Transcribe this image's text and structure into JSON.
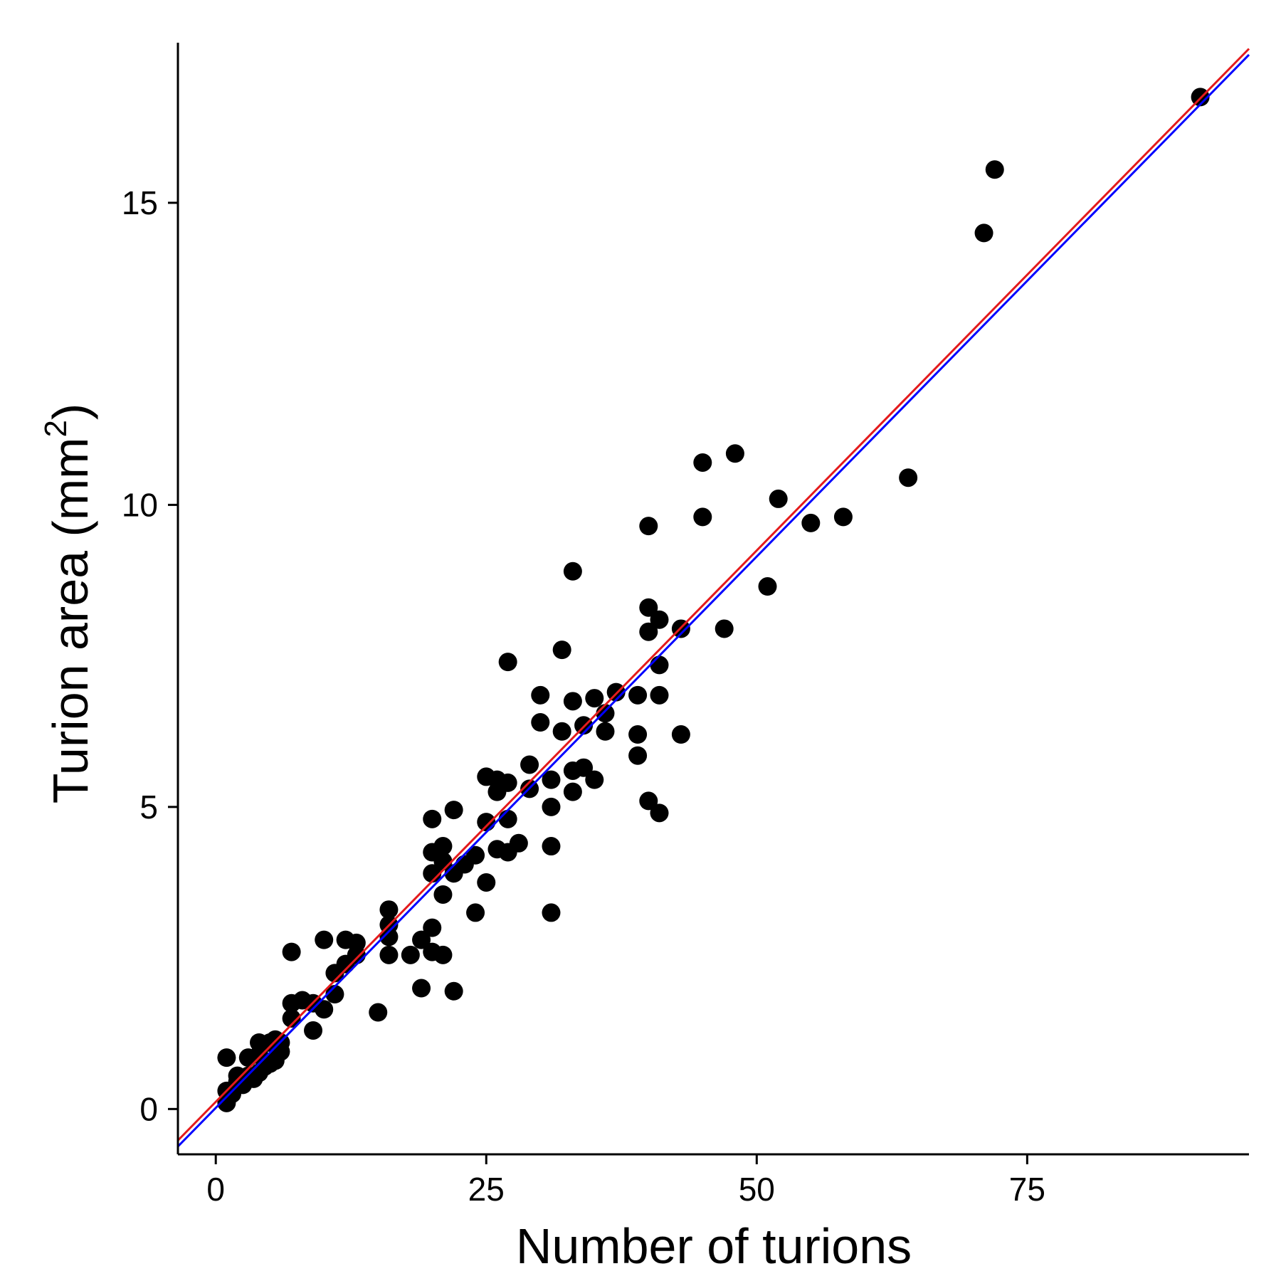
{
  "chart_data": {
    "type": "scatter",
    "xlabel": "Number of turions",
    "ylabel": {
      "text": "Turion area (mm",
      "superscript": "2",
      "suffix": ")"
    },
    "xlim": [
      -3.5,
      95.5
    ],
    "ylim": [
      -0.75,
      17.65
    ],
    "xticks": [
      0,
      25,
      50,
      75
    ],
    "yticks": [
      0,
      5,
      10,
      15
    ],
    "grid": false,
    "legend": "none",
    "point_color": "#000000",
    "points": [
      [
        1,
        0.1
      ],
      [
        1,
        0.3
      ],
      [
        1,
        0.85
      ],
      [
        1.5,
        0.25
      ],
      [
        2,
        0.45
      ],
      [
        2,
        0.55
      ],
      [
        2.5,
        0.4
      ],
      [
        3,
        0.55
      ],
      [
        3,
        0.85
      ],
      [
        3.5,
        0.5
      ],
      [
        4,
        0.6
      ],
      [
        4,
        0.9
      ],
      [
        4,
        1.1
      ],
      [
        4.5,
        0.7
      ],
      [
        5,
        0.75
      ],
      [
        5,
        1.1
      ],
      [
        5.5,
        0.8
      ],
      [
        5.5,
        1.15
      ],
      [
        6,
        0.95
      ],
      [
        6,
        1.1
      ],
      [
        7,
        1.5
      ],
      [
        7,
        1.75
      ],
      [
        7,
        2.6
      ],
      [
        8,
        1.8
      ],
      [
        9,
        1.3
      ],
      [
        9,
        1.75
      ],
      [
        10,
        1.65
      ],
      [
        10,
        2.8
      ],
      [
        11,
        1.9
      ],
      [
        11,
        2.25
      ],
      [
        12,
        2.4
      ],
      [
        12,
        2.8
      ],
      [
        13,
        2.55
      ],
      [
        13,
        2.75
      ],
      [
        15,
        1.6
      ],
      [
        16,
        2.55
      ],
      [
        16,
        2.85
      ],
      [
        16,
        3.05
      ],
      [
        16,
        3.3
      ],
      [
        18,
        2.55
      ],
      [
        19,
        2.0
      ],
      [
        19,
        2.8
      ],
      [
        20,
        2.6
      ],
      [
        20,
        3.0
      ],
      [
        20,
        3.9
      ],
      [
        20,
        4.25
      ],
      [
        20,
        4.8
      ],
      [
        21,
        2.55
      ],
      [
        21,
        3.55
      ],
      [
        21,
        4.1
      ],
      [
        21,
        4.35
      ],
      [
        22,
        1.95
      ],
      [
        22,
        3.9
      ],
      [
        22,
        4.95
      ],
      [
        23,
        4.05
      ],
      [
        24,
        3.25
      ],
      [
        24,
        4.2
      ],
      [
        25,
        3.75
      ],
      [
        25,
        4.75
      ],
      [
        25,
        5.5
      ],
      [
        26,
        4.3
      ],
      [
        26,
        5.25
      ],
      [
        26,
        5.45
      ],
      [
        27,
        4.25
      ],
      [
        27,
        4.8
      ],
      [
        27,
        5.4
      ],
      [
        27,
        7.4
      ],
      [
        28,
        4.4
      ],
      [
        29,
        5.3
      ],
      [
        29,
        5.7
      ],
      [
        30,
        6.4
      ],
      [
        30,
        6.85
      ],
      [
        31,
        3.25
      ],
      [
        31,
        4.35
      ],
      [
        31,
        5.0
      ],
      [
        31,
        5.45
      ],
      [
        32,
        6.25
      ],
      [
        32,
        7.6
      ],
      [
        33,
        5.25
      ],
      [
        33,
        5.6
      ],
      [
        33,
        6.75
      ],
      [
        33,
        8.9
      ],
      [
        34,
        5.65
      ],
      [
        34,
        6.35
      ],
      [
        35,
        5.45
      ],
      [
        35,
        6.8
      ],
      [
        36,
        6.25
      ],
      [
        36,
        6.55
      ],
      [
        37,
        6.9
      ],
      [
        39,
        5.85
      ],
      [
        39,
        6.2
      ],
      [
        39,
        6.85
      ],
      [
        40,
        5.1
      ],
      [
        40,
        7.9
      ],
      [
        40,
        8.3
      ],
      [
        40,
        9.65
      ],
      [
        41,
        4.9
      ],
      [
        41,
        6.85
      ],
      [
        41,
        7.35
      ],
      [
        41,
        8.1
      ],
      [
        43,
        6.2
      ],
      [
        43,
        7.95
      ],
      [
        45,
        9.8
      ],
      [
        45,
        10.7
      ],
      [
        47,
        7.95
      ],
      [
        48,
        10.85
      ],
      [
        51,
        8.65
      ],
      [
        52,
        10.1
      ],
      [
        55,
        9.7
      ],
      [
        58,
        9.8
      ],
      [
        64,
        10.45
      ],
      [
        71,
        14.5
      ],
      [
        72,
        15.55
      ],
      [
        91,
        16.75
      ]
    ],
    "fit_lines": [
      {
        "color": "#e41a1c",
        "x": [
          -3.5,
          95.5
        ],
        "y": [
          -0.52,
          17.55
        ]
      },
      {
        "color": "#0000ff",
        "x": [
          -3.5,
          95.5
        ],
        "y": [
          -0.62,
          17.45
        ]
      }
    ]
  }
}
